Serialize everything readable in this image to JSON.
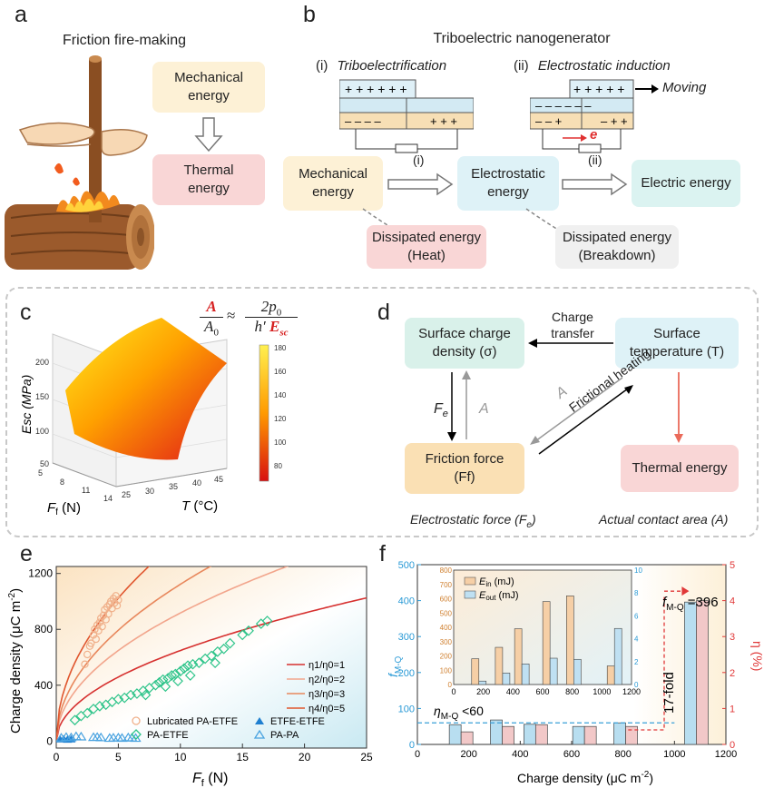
{
  "panel_a": {
    "label": "a",
    "title": "Friction fire-making",
    "box_mech": [
      "Mechanical",
      "energy"
    ],
    "box_therm": [
      "Thermal",
      "energy"
    ]
  },
  "panel_b": {
    "label": "b",
    "title": "Triboelectric nanogenerator",
    "sub_i_num": "(i)",
    "sub_i": "Triboelectrification",
    "sub_ii_num": "(ii)",
    "sub_ii": "Electrostatic induction",
    "moving": "Moving",
    "electron": "e",
    "box_mech": [
      "Mechanical",
      "energy"
    ],
    "box_electrostatic": [
      "Electrostatic",
      "energy"
    ],
    "box_electric": "Electric energy",
    "box_heat": [
      "Dissipated energy",
      "(Heat)"
    ],
    "box_breakdown": [
      "Dissipated energy",
      "(Breakdown)"
    ],
    "arrow_i": "(i)",
    "arrow_ii": "(ii)"
  },
  "panel_c": {
    "label": "c",
    "zlabel": "Esc (MPa)",
    "xlabel": "F",
    "xlabel_sub": "f",
    "xlabel_unit": " (N)",
    "ylabel": "T",
    "ylabel_unit": " (°C)",
    "z_ticks": [
      "50",
      "100",
      "150",
      "200"
    ],
    "f_ticks": [
      "5",
      "8",
      "11",
      "14"
    ],
    "t_ticks": [
      "25",
      "30",
      "35",
      "40",
      "45"
    ],
    "colorbar_ticks": [
      "80",
      "100",
      "120",
      "140",
      "160",
      "180"
    ],
    "eq_left_num": "A",
    "eq_left_den": "A",
    "eq_left_den_sub": "0",
    "eq_approx": "≈",
    "eq_right_num": "2p",
    "eq_right_num_sub": "0",
    "eq_right_den": "h′",
    "eq_right_den_em": "E",
    "eq_right_den_sub": "sc"
  },
  "panel_d": {
    "label": "d",
    "box_sigma": [
      "Surface charge",
      "density (σ)"
    ],
    "box_temp": [
      "Surface",
      "temperature (T)"
    ],
    "box_friction": [
      "Friction force",
      "(Ff)"
    ],
    "box_thermal": "Thermal energy",
    "charge_transfer": [
      "Charge",
      "transfer"
    ],
    "fe": "F",
    "fe_sub": "e",
    "a_label": "A",
    "a_label2": "A",
    "frictional_heating": "Frictional heating",
    "caption_left": "Electrostatic force (F",
    "caption_left_sub": "e",
    "caption_left_end": ")",
    "caption_right": "Actual contact area (A)"
  },
  "panel_e": {
    "label": "e",
    "ylabel": "Charge density (μC m",
    "ylabel_sup": "-2",
    "ylabel_end": ")",
    "xlabel": "F",
    "xlabel_sub": "f",
    "xlabel_unit": " (N)",
    "legend_lines": [
      "η1/η0=1",
      "η2/η0=2",
      "η3/η0=3",
      "η4/η0=5"
    ],
    "legend_markers": [
      "Lubricated PA-ETFE",
      "PA-ETFE",
      "ETFE-ETFE",
      "PA-PA"
    ]
  },
  "panel_f": {
    "label": "f",
    "ylabel_left": "f",
    "ylabel_left_sub": "M-Q",
    "ylabel_right": "η (%)",
    "xlabel": "Charge density (μC m",
    "xlabel_sup": "-2",
    "xlabel_end": ")",
    "annot_fmq": "f",
    "annot_fmq_sub": "M-Q",
    "annot_fmq_val": " =396",
    "annot_eta": "η",
    "annot_eta_sub": "M-Q",
    "annot_eta_val": " <60",
    "annot_fold": "17-fold",
    "inset_legend": [
      "E",
      "in",
      " (mJ)",
      "E",
      "out",
      " (mJ)"
    ]
  },
  "chart_data": [
    {
      "type": "surface",
      "panel": "c",
      "xlabel": "Ff (N)",
      "ylabel": "T (°C)",
      "zlabel": "Esc (MPa)",
      "xlim": [
        5,
        14
      ],
      "ylim": [
        25,
        45
      ],
      "zlim": [
        50,
        200
      ],
      "colorbar": [
        80,
        100,
        120,
        140,
        160,
        180
      ]
    },
    {
      "type": "scatter",
      "panel": "e",
      "xlabel": "Ff (N)",
      "ylabel": "Charge density (μC m-2)",
      "xlim": [
        0,
        25
      ],
      "ylim": [
        -50,
        1250
      ],
      "x_ticks": [
        0,
        5,
        10,
        15,
        20,
        25
      ],
      "y_ticks": [
        0,
        400,
        800,
        1200
      ],
      "curves": [
        {
          "name": "η1/η0=1",
          "k": 205,
          "color": "#d6302f"
        },
        {
          "name": "η2/η0=2",
          "k": 290,
          "color": "#f2a58c"
        },
        {
          "name": "η3/η0=3",
          "k": 355,
          "color": "#e8875c"
        },
        {
          "name": "η4/η0=5",
          "k": 458,
          "color": "#e0562e"
        }
      ],
      "series": [
        {
          "name": "Lubricated PA-ETFE",
          "marker": "circle-open",
          "color": "#f0b08a",
          "points": [
            [
              2.3,
              550
            ],
            [
              2.5,
              620
            ],
            [
              2.7,
              680
            ],
            [
              2.8,
              700
            ],
            [
              3.0,
              760
            ],
            [
              3.1,
              800
            ],
            [
              3.2,
              730
            ],
            [
              3.3,
              830
            ],
            [
              3.4,
              790
            ],
            [
              3.5,
              850
            ],
            [
              3.6,
              880
            ],
            [
              3.7,
              820
            ],
            [
              3.8,
              900
            ],
            [
              3.9,
              940
            ],
            [
              4.0,
              870
            ],
            [
              4.1,
              960
            ],
            [
              4.2,
              910
            ],
            [
              4.3,
              980
            ],
            [
              4.4,
              1000
            ],
            [
              4.5,
              950
            ],
            [
              4.6,
              1020
            ],
            [
              4.7,
              990
            ],
            [
              4.8,
              1040
            ],
            [
              4.9,
              970
            ],
            [
              5.0,
              1010
            ]
          ]
        },
        {
          "name": "PA-ETFE",
          "marker": "diamond-open",
          "color": "#2ec48a",
          "points": [
            [
              1.5,
              150
            ],
            [
              2.0,
              180
            ],
            [
              2.5,
              200
            ],
            [
              3.0,
              230
            ],
            [
              3.5,
              250
            ],
            [
              4.0,
              260
            ],
            [
              4.5,
              280
            ],
            [
              5.0,
              300
            ],
            [
              5.5,
              310
            ],
            [
              6.0,
              330
            ],
            [
              6.5,
              340
            ],
            [
              7.0,
              360
            ],
            [
              7.5,
              380
            ],
            [
              8.0,
              400
            ],
            [
              8.3,
              420
            ],
            [
              8.6,
              440
            ],
            [
              9.0,
              450
            ],
            [
              9.3,
              470
            ],
            [
              9.6,
              480
            ],
            [
              10.0,
              500
            ],
            [
              10.3,
              520
            ],
            [
              10.6,
              540
            ],
            [
              11.0,
              550
            ],
            [
              11.5,
              560
            ],
            [
              12.0,
              590
            ],
            [
              12.5,
              610
            ],
            [
              13.0,
              640
            ],
            [
              13.5,
              660
            ],
            [
              14.0,
              700
            ],
            [
              15.0,
              760
            ],
            [
              15.5,
              790
            ],
            [
              16.5,
              840
            ],
            [
              17.0,
              860
            ],
            [
              7.2,
              330
            ],
            [
              8.8,
              390
            ],
            [
              9.8,
              430
            ],
            [
              10.8,
              470
            ],
            [
              12.8,
              560
            ]
          ]
        },
        {
          "name": "ETFE-ETFE",
          "marker": "triangle-filled",
          "color": "#1f7fd0",
          "points": [
            [
              0.3,
              10
            ],
            [
              0.6,
              12
            ],
            [
              0.9,
              8
            ],
            [
              1.2,
              10
            ]
          ]
        },
        {
          "name": "PA-PA",
          "marker": "triangle-open",
          "color": "#4aa3e0",
          "points": [
            [
              0.4,
              20
            ],
            [
              0.8,
              25
            ],
            [
              1.2,
              22
            ],
            [
              1.6,
              30
            ],
            [
              2.0,
              28
            ],
            [
              3.0,
              24
            ],
            [
              3.3,
              25
            ],
            [
              3.6,
              22
            ],
            [
              4.3,
              18
            ],
            [
              4.6,
              20
            ],
            [
              5.0,
              21
            ],
            [
              5.3,
              18
            ],
            [
              5.8,
              22
            ],
            [
              6.1,
              20
            ],
            [
              6.4,
              18
            ]
          ]
        }
      ]
    },
    {
      "type": "bar",
      "panel": "f",
      "xlabel": "Charge density (μC m-2)",
      "ylabel_left": "fM-Q",
      "ylabel_right": "η (%)",
      "xlim": [
        0,
        1200
      ],
      "x_ticks": [
        0,
        200,
        400,
        600,
        800,
        1000,
        1200
      ],
      "y_left_ticks": [
        0,
        100,
        200,
        300,
        400,
        500
      ],
      "y_left_lim": [
        0,
        500
      ],
      "y_right_ticks": [
        0,
        1,
        2,
        3,
        4,
        5
      ],
      "y_right_lim": [
        0,
        5
      ],
      "categories": [
        170,
        330,
        460,
        650,
        810,
        1085
      ],
      "series": [
        {
          "name": "fM-Q",
          "axis": "left",
          "color": "#b8def0",
          "values": [
            55,
            68,
            56,
            50,
            60,
            396
          ]
        },
        {
          "name": "η",
          "axis": "right",
          "color": "#f2c8c8",
          "values": [
            0.35,
            0.5,
            0.55,
            0.5,
            0.5,
            4.0
          ]
        }
      ],
      "threshold": {
        "value": 60,
        "axis": "left"
      },
      "inset": {
        "xlim": [
          0,
          1200
        ],
        "x_ticks": [
          0,
          200,
          400,
          600,
          800,
          1000,
          1200
        ],
        "y_left_ticks": [
          0,
          100,
          200,
          300,
          400,
          500,
          600,
          700,
          800
        ],
        "y_right_ticks": [
          0,
          2,
          4,
          6,
          8,
          10
        ],
        "y_left_lim": [
          0,
          800
        ],
        "y_right_lim": [
          0,
          10
        ],
        "categories": [
          170,
          330,
          460,
          650,
          810,
          1085
        ],
        "series": [
          {
            "name": "Ein (mJ)",
            "axis": "left",
            "color": "#f6cfa6",
            "values": [
              180,
              260,
              390,
              580,
              620,
              130
            ]
          },
          {
            "name": "Eout (mJ)",
            "axis": "right",
            "color": "#bfe0f2",
            "values": [
              0.3,
              1.0,
              1.8,
              2.3,
              2.2,
              4.9
            ]
          }
        ]
      }
    }
  ]
}
